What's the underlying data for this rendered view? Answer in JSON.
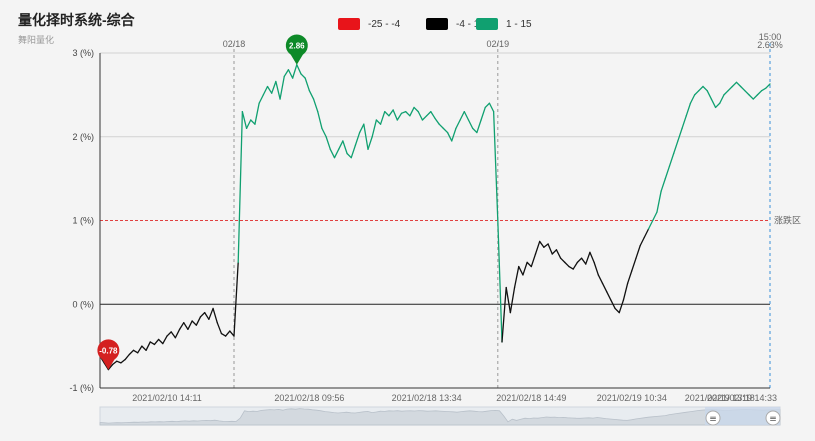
{
  "header": {
    "title": "量化择时系统-综合",
    "subtitle": "舞阳量化"
  },
  "legend": [
    {
      "label": "-25 - -4",
      "color": "#e8141a"
    },
    {
      "label": "-4 - 1",
      "color": "#000000"
    },
    {
      "label": "1 - 15",
      "color": "#10a070"
    }
  ],
  "chart_data": {
    "type": "line",
    "title": "量化择时系统-综合",
    "y_ticks": [
      "3 (%)",
      "2 (%)",
      "1 (%)",
      "0 (%)",
      "-1 (%)"
    ],
    "ylim": [
      -1,
      3
    ],
    "x_ticks": [
      "2021/02/10 14:11",
      "2021/02/18 09:56",
      "2021/02/18 13:34",
      "2021/02/18 14:49",
      "2021/02/19 10:34",
      "2021/02/19 13:18",
      "2021/02/19 14:33"
    ],
    "day_markers": [
      "02/18",
      "02/19"
    ],
    "end_marker": {
      "time": "15:00",
      "value": "2.63%"
    },
    "reference_line": {
      "value": 1,
      "label": "涨跌区"
    },
    "max_point": {
      "label": "2.86",
      "value": 2.86
    },
    "min_point": {
      "label": "-0.78",
      "value": -0.78
    },
    "color_bands": [
      {
        "range": [
          -25,
          -4
        ],
        "color": "#e8141a"
      },
      {
        "range": [
          -4,
          1
        ],
        "color": "#000000"
      },
      {
        "range": [
          1,
          15
        ],
        "color": "#10a070"
      }
    ],
    "grid": true,
    "segments": [
      {
        "name": "day1",
        "points": [
          [
            0,
            -0.62
          ],
          [
            1,
            -0.7
          ],
          [
            2,
            -0.78
          ],
          [
            3,
            -0.72
          ],
          [
            4,
            -0.68
          ],
          [
            5,
            -0.7
          ],
          [
            6,
            -0.66
          ],
          [
            7,
            -0.6
          ],
          [
            8,
            -0.55
          ],
          [
            9,
            -0.58
          ],
          [
            10,
            -0.5
          ],
          [
            11,
            -0.55
          ],
          [
            12,
            -0.45
          ],
          [
            13,
            -0.48
          ],
          [
            14,
            -0.42
          ],
          [
            15,
            -0.47
          ],
          [
            16,
            -0.38
          ],
          [
            17,
            -0.33
          ],
          [
            18,
            -0.4
          ],
          [
            19,
            -0.3
          ],
          [
            20,
            -0.22
          ],
          [
            21,
            -0.3
          ],
          [
            22,
            -0.2
          ],
          [
            23,
            -0.25
          ],
          [
            24,
            -0.15
          ],
          [
            25,
            -0.1
          ],
          [
            26,
            -0.18
          ],
          [
            27,
            -0.05
          ],
          [
            28,
            -0.22
          ],
          [
            29,
            -0.35
          ],
          [
            30,
            -0.38
          ],
          [
            31,
            -0.32
          ],
          [
            32,
            -0.38
          ]
        ]
      },
      {
        "name": "day2",
        "points": [
          [
            32,
            -0.38
          ],
          [
            33,
            0.5
          ],
          [
            34,
            2.3
          ],
          [
            35,
            2.1
          ],
          [
            36,
            2.2
          ],
          [
            37,
            2.15
          ],
          [
            38,
            2.4
          ],
          [
            39,
            2.5
          ],
          [
            40,
            2.6
          ],
          [
            41,
            2.52
          ],
          [
            42,
            2.66
          ],
          [
            43,
            2.45
          ],
          [
            44,
            2.72
          ],
          [
            45,
            2.8
          ],
          [
            46,
            2.7
          ],
          [
            47,
            2.86
          ],
          [
            48,
            2.75
          ],
          [
            49,
            2.7
          ],
          [
            50,
            2.55
          ],
          [
            51,
            2.45
          ],
          [
            52,
            2.3
          ],
          [
            53,
            2.1
          ],
          [
            54,
            2.0
          ],
          [
            55,
            1.85
          ],
          [
            56,
            1.75
          ],
          [
            57,
            1.85
          ],
          [
            58,
            1.95
          ],
          [
            59,
            1.8
          ],
          [
            60,
            1.75
          ],
          [
            61,
            1.9
          ],
          [
            62,
            2.05
          ],
          [
            63,
            2.15
          ],
          [
            64,
            1.85
          ],
          [
            65,
            2.0
          ],
          [
            66,
            2.2
          ],
          [
            67,
            2.15
          ],
          [
            68,
            2.3
          ],
          [
            69,
            2.25
          ],
          [
            70,
            2.32
          ],
          [
            71,
            2.2
          ],
          [
            72,
            2.28
          ],
          [
            73,
            2.3
          ],
          [
            74,
            2.25
          ],
          [
            75,
            2.35
          ],
          [
            76,
            2.3
          ],
          [
            77,
            2.2
          ],
          [
            78,
            2.25
          ],
          [
            79,
            2.3
          ],
          [
            80,
            2.22
          ],
          [
            81,
            2.15
          ],
          [
            82,
            2.1
          ],
          [
            83,
            2.05
          ],
          [
            84,
            1.95
          ],
          [
            85,
            2.1
          ],
          [
            86,
            2.2
          ],
          [
            87,
            2.3
          ],
          [
            88,
            2.2
          ],
          [
            89,
            2.1
          ],
          [
            90,
            2.05
          ],
          [
            91,
            2.2
          ],
          [
            92,
            2.35
          ],
          [
            93,
            2.4
          ],
          [
            94,
            2.3
          ],
          [
            95,
            1.0
          ]
        ]
      },
      {
        "name": "day3",
        "points": [
          [
            95,
            1.0
          ],
          [
            96,
            -0.45
          ],
          [
            97,
            0.2
          ],
          [
            98,
            -0.1
          ],
          [
            99,
            0.2
          ],
          [
            100,
            0.45
          ],
          [
            101,
            0.35
          ],
          [
            102,
            0.5
          ],
          [
            103,
            0.45
          ],
          [
            104,
            0.6
          ],
          [
            105,
            0.75
          ],
          [
            106,
            0.68
          ],
          [
            107,
            0.72
          ],
          [
            108,
            0.6
          ],
          [
            109,
            0.65
          ],
          [
            110,
            0.55
          ],
          [
            111,
            0.5
          ],
          [
            112,
            0.45
          ],
          [
            113,
            0.42
          ],
          [
            114,
            0.5
          ],
          [
            115,
            0.55
          ],
          [
            116,
            0.48
          ],
          [
            117,
            0.62
          ],
          [
            118,
            0.5
          ],
          [
            119,
            0.35
          ],
          [
            120,
            0.25
          ],
          [
            121,
            0.15
          ],
          [
            122,
            0.05
          ],
          [
            123,
            -0.05
          ],
          [
            124,
            -0.1
          ],
          [
            125,
            0.05
          ],
          [
            126,
            0.25
          ],
          [
            127,
            0.4
          ],
          [
            128,
            0.55
          ],
          [
            129,
            0.7
          ],
          [
            130,
            0.8
          ],
          [
            131,
            0.9
          ],
          [
            132,
            1.0
          ],
          [
            133,
            1.1
          ],
          [
            134,
            1.35
          ],
          [
            135,
            1.5
          ],
          [
            136,
            1.65
          ],
          [
            137,
            1.8
          ],
          [
            138,
            1.95
          ],
          [
            139,
            2.1
          ],
          [
            140,
            2.25
          ],
          [
            141,
            2.4
          ],
          [
            142,
            2.5
          ],
          [
            143,
            2.55
          ],
          [
            144,
            2.6
          ],
          [
            145,
            2.55
          ],
          [
            146,
            2.45
          ],
          [
            147,
            2.35
          ],
          [
            148,
            2.4
          ],
          [
            149,
            2.5
          ],
          [
            150,
            2.55
          ],
          [
            151,
            2.6
          ],
          [
            152,
            2.65
          ],
          [
            153,
            2.6
          ],
          [
            154,
            2.55
          ],
          [
            155,
            2.5
          ],
          [
            156,
            2.45
          ],
          [
            157,
            2.5
          ],
          [
            158,
            2.55
          ],
          [
            159,
            2.58
          ],
          [
            160,
            2.63
          ]
        ]
      }
    ]
  },
  "zoom_handles": {
    "left": "≡",
    "right": "≡"
  }
}
